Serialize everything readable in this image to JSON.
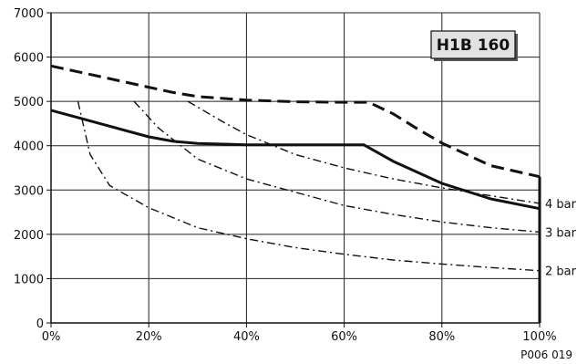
{
  "chart_data": {
    "type": "line",
    "title": "H1B 160",
    "reference": "P006 019",
    "xlim": [
      0,
      100
    ],
    "ylim": [
      0,
      7000
    ],
    "x_ticks": [
      0,
      20,
      40,
      60,
      80,
      100
    ],
    "x_tick_labels": [
      "0%",
      "20%",
      "40%",
      "60%",
      "80%",
      "100%"
    ],
    "y_ticks": [
      0,
      1000,
      2000,
      3000,
      4000,
      5000,
      6000,
      7000
    ],
    "y_tick_labels": [
      "0",
      "1000",
      "2000",
      "3000",
      "4000",
      "5000",
      "6000",
      "7000"
    ],
    "grid": true,
    "series": [
      {
        "style": "dashed-thick",
        "x": [
          0,
          10,
          20,
          25,
          30,
          40,
          50,
          60,
          65,
          70,
          75,
          80,
          90,
          100
        ],
        "y": [
          5800,
          5560,
          5320,
          5200,
          5110,
          5030,
          4990,
          4980,
          4980,
          4720,
          4380,
          4060,
          3550,
          3300
        ]
      },
      {
        "style": "solid-thick",
        "x": [
          0,
          10,
          20,
          25,
          30,
          40,
          50,
          60,
          64,
          70,
          80,
          90,
          100
        ],
        "y": [
          4800,
          4500,
          4200,
          4100,
          4050,
          4020,
          4020,
          4020,
          4020,
          3650,
          3150,
          2800,
          2580
        ]
      },
      {
        "name": "4 bar",
        "style": "dashdot-thin",
        "x": [
          28,
          35,
          40,
          50,
          60,
          70,
          80,
          90,
          100
        ],
        "y": [
          5000,
          4550,
          4250,
          3800,
          3500,
          3250,
          3050,
          2870,
          2700
        ]
      },
      {
        "name": "3 bar",
        "style": "dashdot-thin",
        "x": [
          17,
          22,
          30,
          40,
          50,
          60,
          70,
          80,
          90,
          100
        ],
        "y": [
          5000,
          4400,
          3700,
          3250,
          2950,
          2650,
          2450,
          2280,
          2150,
          2050
        ]
      },
      {
        "name": "2 bar",
        "style": "dashdot-thin",
        "x": [
          5.5,
          8,
          12,
          20,
          30,
          40,
          50,
          60,
          70,
          80,
          90,
          100
        ],
        "y": [
          5000,
          3800,
          3100,
          2600,
          2150,
          1900,
          1700,
          1550,
          1420,
          1330,
          1250,
          1180
        ]
      }
    ],
    "cutoff_line": {
      "x": 100,
      "y_range": [
        0,
        3300
      ]
    }
  }
}
